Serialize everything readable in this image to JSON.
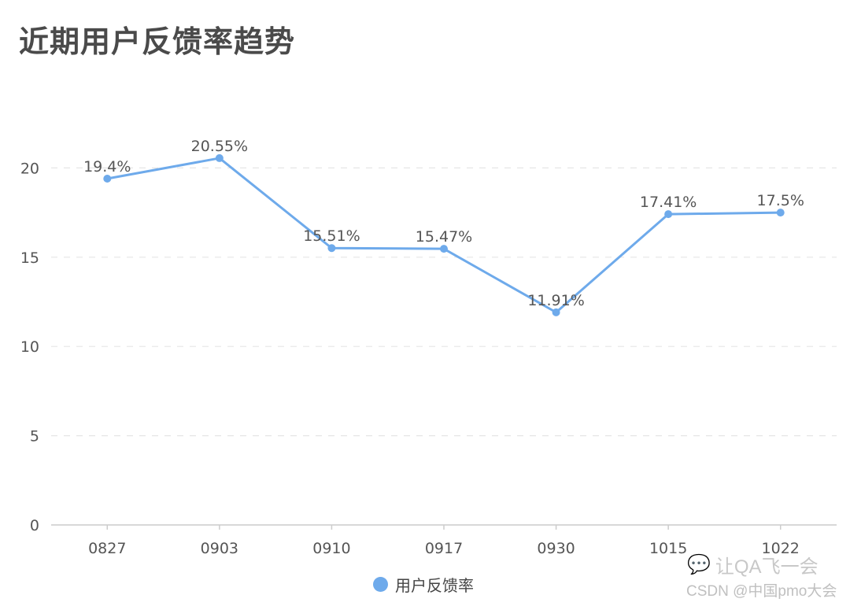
{
  "header": {
    "title": "近期用户反馈率趋势"
  },
  "legend": {
    "label": "用户反馈率",
    "color": "#6eaaeb"
  },
  "watermark": {
    "line1": "让QA飞一会",
    "line2": "CSDN @中国pmo大会",
    "icon": "wechat-icon"
  },
  "colors": {
    "line": "#6eaaeb",
    "text": "#555555",
    "grid": "#e6e6e6",
    "axis": "#cccccc"
  },
  "chart_data": {
    "type": "line",
    "title": "近期用户反馈率趋势",
    "xlabel": "",
    "ylabel": "",
    "categories": [
      "0827",
      "0903",
      "0910",
      "0917",
      "0930",
      "1015",
      "1022"
    ],
    "series": [
      {
        "name": "用户反馈率",
        "values": [
          19.4,
          20.55,
          15.51,
          15.47,
          11.91,
          17.41,
          17.5
        ],
        "labels": [
          "19.4%",
          "20.55%",
          "15.51%",
          "15.47%",
          "11.91%",
          "17.41%",
          "17.5%"
        ]
      }
    ],
    "yticks": [
      0,
      5,
      10,
      15,
      20
    ],
    "ylim": [
      0,
      24
    ],
    "grid": "horizontal dashed",
    "legend_position": "bottom"
  }
}
